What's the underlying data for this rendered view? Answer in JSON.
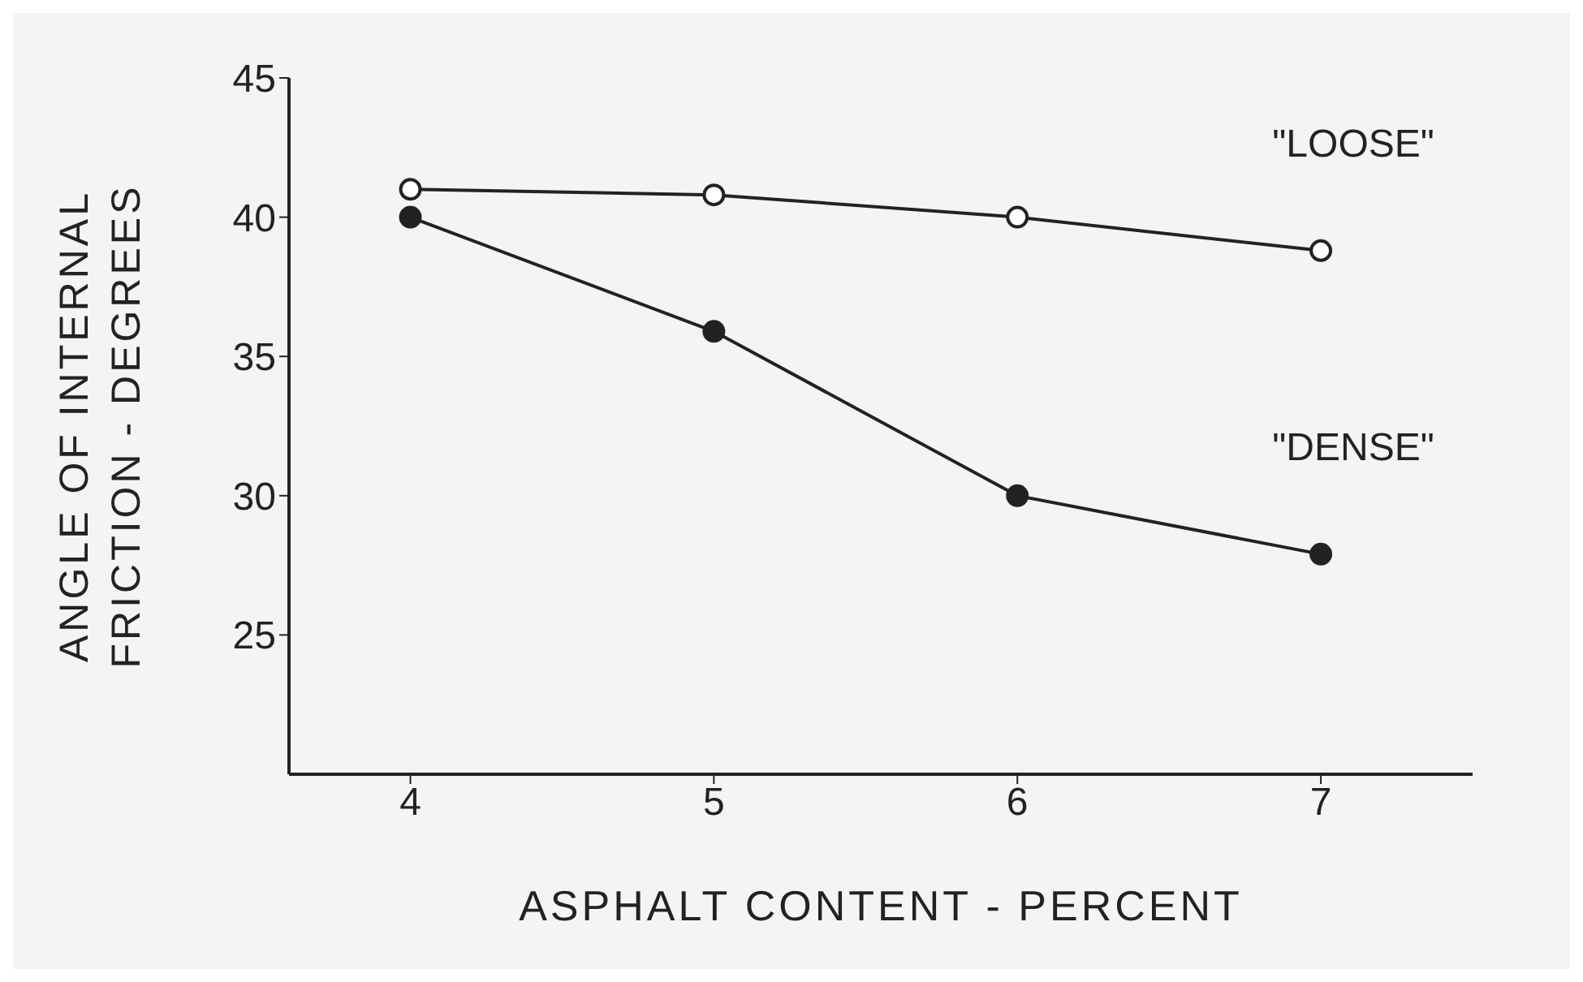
{
  "chart_data": {
    "type": "line",
    "xlabel": "ASPHALT CONTENT - PERCENT",
    "ylabel": "ANGLE OF INTERNAL FRICTION - DEGREES",
    "x": [
      4,
      5,
      6,
      7
    ],
    "series": [
      {
        "name": "\"LOOSE\"",
        "color": "#222222",
        "values": [
          41,
          40.8,
          40,
          38.8
        ]
      },
      {
        "name": "\"DENSE\"",
        "color": "#222222",
        "values": [
          40,
          35.9,
          30,
          27.9
        ]
      }
    ],
    "xlim": [
      3.6,
      7.5
    ],
    "xticks": [
      4,
      5,
      6,
      7
    ],
    "ylim": [
      20,
      45
    ],
    "yticks": [
      25,
      30,
      35,
      40,
      45
    ],
    "grid": false,
    "legend": false,
    "marker": "circle",
    "line_style": "solid"
  }
}
